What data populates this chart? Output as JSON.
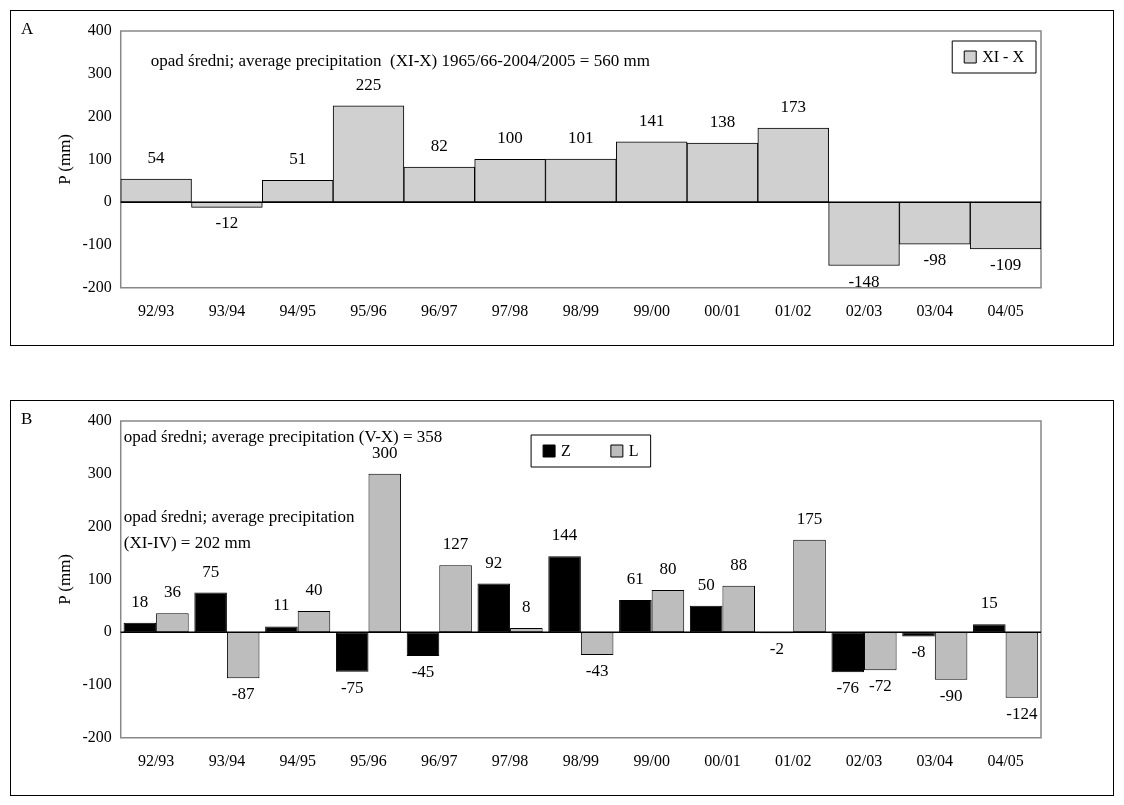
{
  "chart_data": [
    {
      "type": "bar",
      "title": "A",
      "ylabel": "P (mm)",
      "categories": [
        "92/93",
        "93/94",
        "94/95",
        "95/96",
        "96/97",
        "97/98",
        "98/99",
        "99/00",
        "00/01",
        "01/02",
        "02/03",
        "03/04",
        "04/05"
      ],
      "series": [
        {
          "name": "XI - X",
          "color": "#d0d0d0",
          "values": [
            54,
            -12,
            51,
            225,
            82,
            100,
            101,
            141,
            138,
            173,
            -148,
            -98,
            -109
          ]
        }
      ],
      "ylim": [
        -200,
        400
      ],
      "yticks": [
        -200,
        -100,
        0,
        100,
        200,
        300,
        400
      ],
      "legend": "top right",
      "data_labels": true,
      "annotations": [
        "opad średni; average precipitation  (XI-X) 1965/66-2004/2005 = 560 mm"
      ]
    },
    {
      "type": "bar",
      "title": "B",
      "ylabel": "P (mm)",
      "categories": [
        "92/93",
        "93/94",
        "94/95",
        "95/96",
        "96/97",
        "97/98",
        "98/99",
        "99/00",
        "00/01",
        "01/02",
        "02/03",
        "03/04",
        "04/05"
      ],
      "series": [
        {
          "name": "Z",
          "color": "#000000",
          "values": [
            18,
            75,
            11,
            -75,
            -45,
            92,
            144,
            61,
            50,
            -2,
            -76,
            -8,
            15
          ]
        },
        {
          "name": "L",
          "color": "#bdbdbd",
          "values": [
            36,
            -87,
            40,
            300,
            127,
            8,
            -43,
            80,
            88,
            175,
            -72,
            -90,
            -124
          ]
        }
      ],
      "ylim": [
        -200,
        400
      ],
      "yticks": [
        -200,
        -100,
        0,
        100,
        200,
        300,
        400
      ],
      "legend": "top",
      "data_labels": true,
      "annotations": [
        "opad średni; average precipitation (V-X) = 358",
        "opad średni; average precipitation\n(XI-IV) = 202 mm"
      ]
    }
  ]
}
